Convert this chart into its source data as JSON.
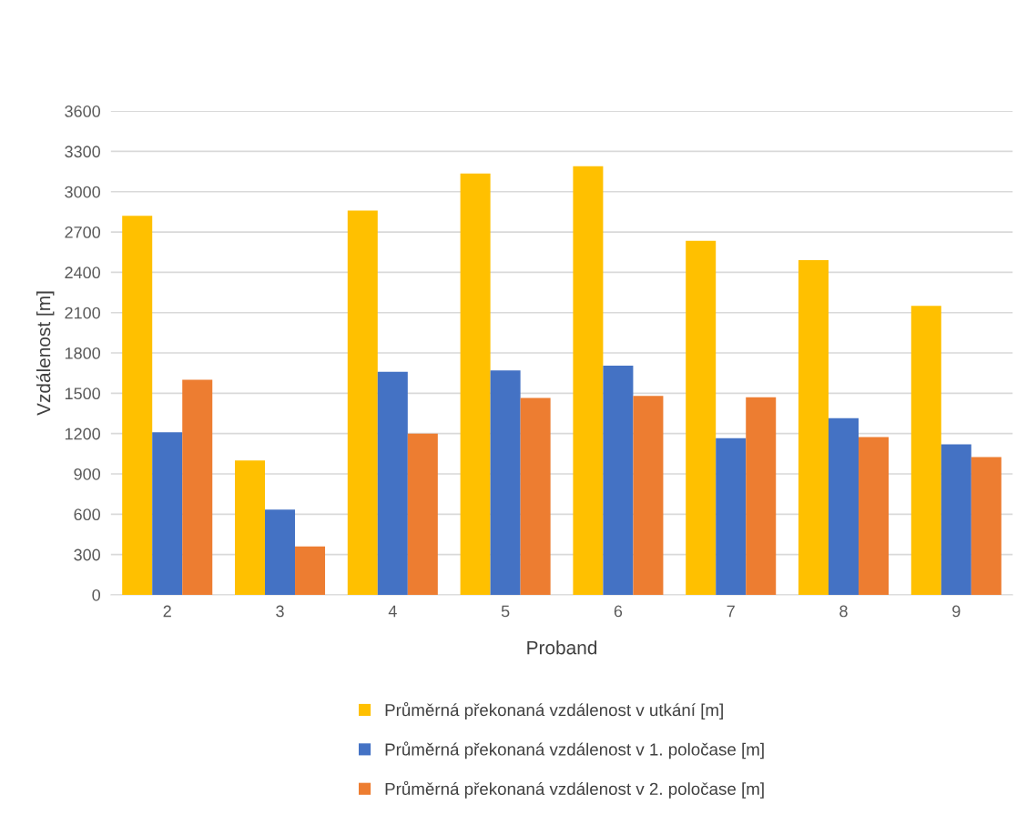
{
  "chart_data": {
    "type": "bar",
    "xlabel": "Proband",
    "ylabel": "Vzdálenost [m]",
    "categories": [
      "2",
      "3",
      "4",
      "5",
      "6",
      "7",
      "8",
      "9"
    ],
    "series": [
      {
        "name": "Průměrná překonaná vzdálenost v utkání [m]",
        "color": "#ffc000",
        "values": [
          2820,
          1000,
          2860,
          3135,
          3190,
          2635,
          2490,
          2150
        ]
      },
      {
        "name": "Průměrná překonaná vzdálenost v 1. poločase [m]",
        "color": "#4472c4",
        "values": [
          1210,
          635,
          1660,
          1670,
          1705,
          1165,
          1315,
          1120
        ]
      },
      {
        "name": "Průměrná překonaná vzdálenost v 2. poločase [m]",
        "color": "#ed7d31",
        "values": [
          1600,
          360,
          1200,
          1465,
          1480,
          1470,
          1175,
          1025
        ]
      }
    ],
    "ylim": [
      0,
      3600
    ],
    "yticks": [
      0,
      300,
      600,
      900,
      1200,
      1500,
      1800,
      2100,
      2400,
      2700,
      3000,
      3300,
      3600
    ],
    "grid": "y",
    "legend": "bottom"
  }
}
